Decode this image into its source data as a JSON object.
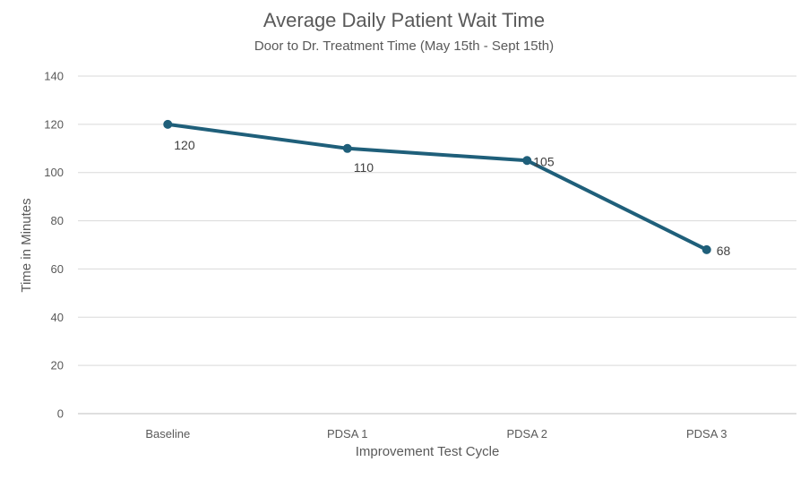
{
  "chart_data": {
    "type": "line",
    "title": "Average Daily Patient Wait Time",
    "subtitle": "Door to Dr. Treatment Time (May 15th - Sept 15th)",
    "xlabel": "Improvement Test Cycle",
    "ylabel": "Time in Minutes",
    "categories": [
      "Baseline",
      "PDSA 1",
      "PDSA 2",
      "PDSA 3"
    ],
    "series": [
      {
        "values": [
          120,
          110,
          105,
          68
        ],
        "color": "#1f5f7a",
        "data_labels": [
          "120",
          "110",
          "105",
          "68"
        ]
      }
    ],
    "ylim": [
      0,
      140
    ],
    "yticks": [
      0,
      20,
      40,
      60,
      80,
      100,
      120,
      140
    ],
    "grid": true,
    "legend": "none"
  }
}
